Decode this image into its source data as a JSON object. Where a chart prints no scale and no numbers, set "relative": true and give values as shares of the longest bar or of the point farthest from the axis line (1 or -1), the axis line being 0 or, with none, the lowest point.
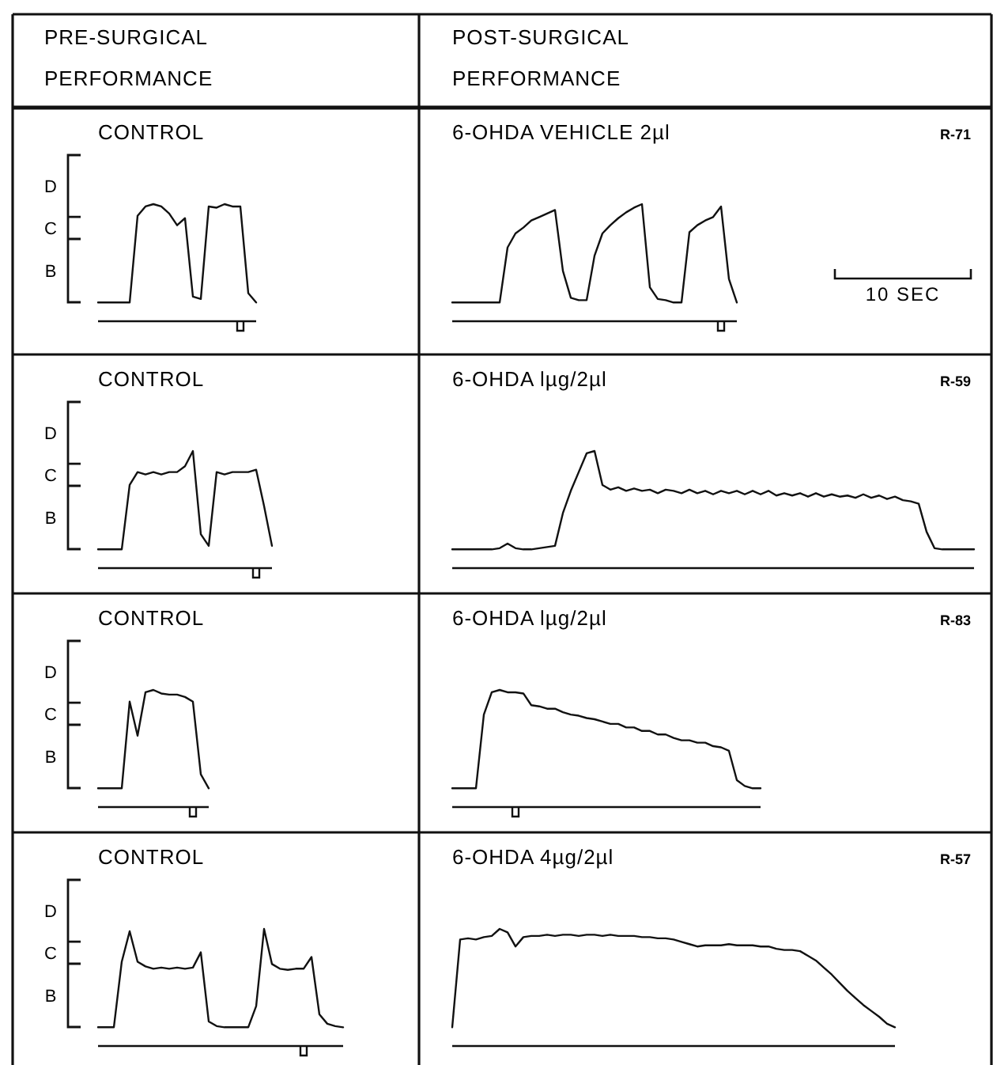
{
  "chart_data": [
    {
      "type": "line",
      "title": "CONTROL",
      "subtitle": "PRE-SURGICAL PERFORMANCE",
      "relative": true,
      "annotations": [
        "D",
        "C",
        "B"
      ],
      "categories": [
        null,
        null,
        null,
        null,
        null,
        null,
        null,
        null,
        null,
        null,
        null,
        null,
        null,
        null,
        null,
        null,
        null,
        null,
        null,
        null,
        null
      ],
      "series": [
        {
          "color": "#111111",
          "values": [
            0.16,
            0.16,
            0.16,
            0.16,
            0.16,
            0.9,
            0.98,
            1,
            0.98,
            0.92,
            0.82,
            0.88,
            0.21,
            0.19,
            0.98,
            0.97,
            1,
            0.98,
            0.98,
            0.24,
            0.16
          ]
        }
      ]
    },
    {
      "type": "line",
      "title": "6-OHDA VEHICLE 2µl",
      "subtitle": "POST-SURGICAL PERFORMANCE",
      "relative": true,
      "annotations": [
        "R-71",
        "10 SEC"
      ],
      "categories": [
        null,
        null,
        null,
        null,
        null,
        null,
        null,
        null,
        null,
        null,
        null,
        null,
        null,
        null,
        null,
        null,
        null,
        null,
        null,
        null,
        null,
        null,
        null,
        null,
        null,
        null,
        null,
        null,
        null,
        null,
        null,
        null,
        null,
        null,
        null,
        null,
        null
      ],
      "series": [
        {
          "color": "#111111",
          "values": [
            0.16,
            0.16,
            0.16,
            0.16,
            0.16,
            0.16,
            0.16,
            0.63,
            0.75,
            0.8,
            0.86,
            0.89,
            0.92,
            0.95,
            0.43,
            0.2,
            0.18,
            0.18,
            0.56,
            0.75,
            0.82,
            0.88,
            0.93,
            0.97,
            1,
            0.29,
            0.19,
            0.18,
            0.16,
            0.16,
            0.76,
            0.82,
            0.86,
            0.89,
            0.98,
            0.36,
            0.16
          ]
        }
      ]
    },
    {
      "type": "line",
      "title": "CONTROL",
      "relative": true,
      "annotations": [
        "D",
        "C",
        "B"
      ],
      "categories": [
        null,
        null,
        null,
        null,
        null,
        null,
        null,
        null,
        null,
        null,
        null,
        null,
        null,
        null,
        null,
        null,
        null,
        null,
        null,
        null,
        null,
        null,
        null
      ],
      "series": [
        {
          "color": "#111111",
          "values": [
            0.16,
            0.16,
            0.16,
            0.16,
            0.71,
            0.82,
            0.8,
            0.82,
            0.8,
            0.82,
            0.82,
            0.87,
            1,
            0.29,
            0.19,
            0.82,
            0.8,
            0.82,
            0.82,
            0.82,
            0.84,
            0.53,
            0.19
          ]
        }
      ]
    },
    {
      "type": "line",
      "title": "6-OHDA lµg/2µl",
      "relative": true,
      "annotations": [
        "R-59"
      ],
      "categories": [
        null,
        null,
        null,
        null,
        null,
        null,
        null,
        null,
        null,
        null,
        null,
        null,
        null,
        null,
        null,
        null,
        null,
        null,
        null,
        null,
        null,
        null,
        null,
        null,
        null,
        null,
        null,
        null,
        null,
        null,
        null,
        null,
        null,
        null,
        null,
        null,
        null,
        null,
        null,
        null,
        null,
        null,
        null,
        null,
        null,
        null,
        null,
        null,
        null,
        null,
        null,
        null,
        null,
        null,
        null,
        null,
        null,
        null,
        null,
        null,
        null,
        null,
        null,
        null,
        null,
        null,
        null
      ],
      "series": [
        {
          "color": "#111111",
          "values": [
            0.16,
            0.16,
            0.16,
            0.16,
            0.16,
            0.16,
            0.17,
            0.21,
            0.17,
            0.16,
            0.16,
            0.17,
            0.18,
            0.19,
            0.47,
            0.66,
            0.82,
            0.98,
            1,
            0.71,
            0.67,
            0.69,
            0.66,
            0.68,
            0.66,
            0.67,
            0.64,
            0.67,
            0.66,
            0.64,
            0.67,
            0.64,
            0.66,
            0.63,
            0.66,
            0.64,
            0.66,
            0.63,
            0.66,
            0.63,
            0.66,
            0.62,
            0.64,
            0.62,
            0.64,
            0.61,
            0.64,
            0.61,
            0.63,
            0.61,
            0.62,
            0.6,
            0.63,
            0.6,
            0.62,
            0.59,
            0.61,
            0.58,
            0.57,
            0.55,
            0.31,
            0.17,
            0.16,
            0.16,
            0.16,
            0.16,
            0.16
          ]
        }
      ]
    },
    {
      "type": "line",
      "title": "CONTROL",
      "relative": true,
      "annotations": [
        "D",
        "C",
        "B"
      ],
      "categories": [
        null,
        null,
        null,
        null,
        null,
        null,
        null,
        null,
        null,
        null,
        null,
        null,
        null,
        null,
        null
      ],
      "series": [
        {
          "color": "#111111",
          "values": [
            0.16,
            0.16,
            0.16,
            0.16,
            0.9,
            0.61,
            0.98,
            1,
            0.97,
            0.96,
            0.96,
            0.94,
            0.9,
            0.28,
            0.16
          ]
        }
      ]
    },
    {
      "type": "line",
      "title": "6-OHDA lµg/2µl",
      "relative": true,
      "annotations": [
        "R-83"
      ],
      "categories": [
        null,
        null,
        null,
        null,
        null,
        null,
        null,
        null,
        null,
        null,
        null,
        null,
        null,
        null,
        null,
        null,
        null,
        null,
        null,
        null,
        null,
        null,
        null,
        null,
        null,
        null,
        null,
        null,
        null,
        null,
        null,
        null,
        null,
        null,
        null,
        null,
        null,
        null,
        null,
        null
      ],
      "series": [
        {
          "color": "#111111",
          "values": [
            0.16,
            0.16,
            0.16,
            0.16,
            0.79,
            0.98,
            1,
            0.98,
            0.98,
            0.97,
            0.87,
            0.86,
            0.84,
            0.84,
            0.81,
            0.79,
            0.78,
            0.76,
            0.75,
            0.73,
            0.71,
            0.71,
            0.68,
            0.68,
            0.65,
            0.65,
            0.62,
            0.62,
            0.59,
            0.57,
            0.57,
            0.55,
            0.55,
            0.52,
            0.51,
            0.48,
            0.23,
            0.18,
            0.16,
            0.16
          ]
        }
      ]
    },
    {
      "type": "line",
      "title": "CONTROL",
      "relative": true,
      "annotations": [
        "D",
        "C",
        "B"
      ],
      "categories": [
        null,
        null,
        null,
        null,
        null,
        null,
        null,
        null,
        null,
        null,
        null,
        null,
        null,
        null,
        null,
        null,
        null,
        null,
        null,
        null,
        null,
        null,
        null,
        null,
        null,
        null,
        null,
        null,
        null,
        null,
        null,
        null
      ],
      "series": [
        {
          "color": "#111111",
          "values": [
            0.16,
            0.16,
            0.16,
            0.72,
            0.98,
            0.72,
            0.68,
            0.66,
            0.67,
            0.66,
            0.67,
            0.66,
            0.67,
            0.8,
            0.21,
            0.17,
            0.16,
            0.16,
            0.16,
            0.16,
            0.34,
            1,
            0.7,
            0.66,
            0.65,
            0.66,
            0.66,
            0.76,
            0.27,
            0.19,
            0.17,
            0.16
          ]
        }
      ]
    },
    {
      "type": "line",
      "title": "6-OHDA 4µg/2µl",
      "relative": true,
      "annotations": [
        "R-57"
      ],
      "categories": [
        null,
        null,
        null,
        null,
        null,
        null,
        null,
        null,
        null,
        null,
        null,
        null,
        null,
        null,
        null,
        null,
        null,
        null,
        null,
        null,
        null,
        null,
        null,
        null,
        null,
        null,
        null,
        null,
        null,
        null,
        null,
        null,
        null,
        null,
        null,
        null,
        null,
        null,
        null,
        null,
        null,
        null,
        null,
        null,
        null,
        null,
        null,
        null,
        null,
        null,
        null,
        null,
        null,
        null,
        null,
        null,
        null
      ],
      "series": [
        {
          "color": "#111111",
          "values": [
            0.16,
            0.91,
            0.92,
            0.91,
            0.93,
            0.94,
            1,
            0.97,
            0.85,
            0.93,
            0.94,
            0.94,
            0.95,
            0.94,
            0.95,
            0.95,
            0.94,
            0.95,
            0.95,
            0.94,
            0.95,
            0.94,
            0.94,
            0.94,
            0.93,
            0.93,
            0.92,
            0.92,
            0.91,
            0.89,
            0.87,
            0.85,
            0.86,
            0.86,
            0.86,
            0.87,
            0.86,
            0.86,
            0.86,
            0.85,
            0.85,
            0.83,
            0.82,
            0.82,
            0.81,
            0.77,
            0.73,
            0.67,
            0.61,
            0.54,
            0.47,
            0.41,
            0.35,
            0.3,
            0.25,
            0.19,
            0.16
          ]
        }
      ]
    }
  ]
}
